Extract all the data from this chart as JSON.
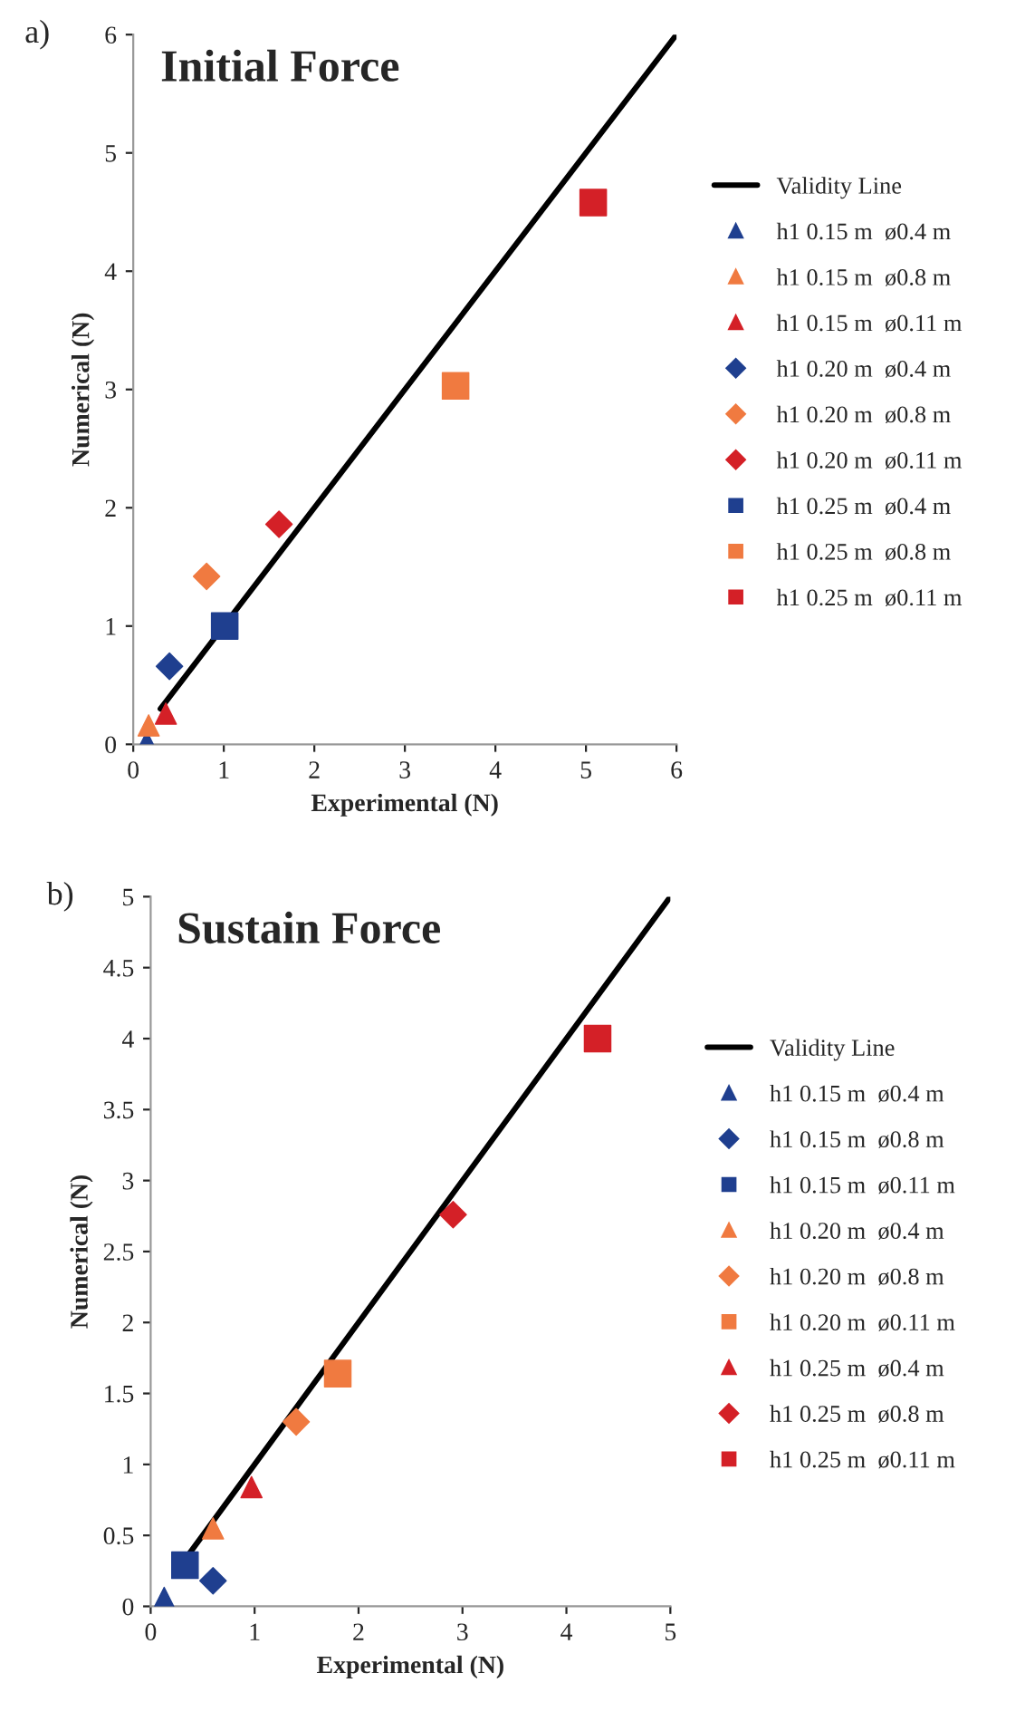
{
  "chart_data": [
    {
      "type": "scatter",
      "title": "Initial Force",
      "xlabel": "Experimental (N)",
      "ylabel": "Numerical (N)",
      "annotations": [
        "a)"
      ],
      "xlim": [
        0,
        6
      ],
      "ylim": [
        0,
        6
      ],
      "xticks": [
        0,
        1,
        2,
        3,
        4,
        5,
        6
      ],
      "yticks": [
        0,
        1,
        2,
        3,
        4,
        5,
        6
      ],
      "legend": "right",
      "grid": false,
      "series": [
        {
          "name": "Validity Line",
          "type": "line",
          "color": "#000000",
          "x": [
            0.3,
            6
          ],
          "values": [
            0.3,
            6
          ]
        },
        {
          "name": "h1 0.15 m  ø0.4 m",
          "color": "#1f3f8f",
          "marker": "triangle",
          "x": [
            0.15
          ],
          "values": [
            0.02
          ]
        },
        {
          "name": "h1 0.15 m  ø0.8 m",
          "color": "#f07a40",
          "marker": "triangle",
          "x": [
            0.17
          ],
          "values": [
            0.16
          ]
        },
        {
          "name": "h1 0.15 m  ø0.11 m",
          "color": "#d42027",
          "marker": "triangle",
          "x": [
            0.36
          ],
          "values": [
            0.26
          ]
        },
        {
          "name": "h1 0.20 m  ø0.4 m",
          "color": "#1f3f8f",
          "marker": "diamond",
          "x": [
            0.4
          ],
          "values": [
            0.66
          ]
        },
        {
          "name": "h1 0.20 m  ø0.8 m",
          "color": "#f07a40",
          "marker": "diamond",
          "x": [
            0.81
          ],
          "values": [
            1.42
          ]
        },
        {
          "name": "h1 0.20 m  ø0.11 m",
          "color": "#d42027",
          "marker": "diamond",
          "x": [
            1.61
          ],
          "values": [
            1.86
          ]
        },
        {
          "name": "h1 0.25 m  ø0.4 m",
          "color": "#1f3f8f",
          "marker": "square",
          "x": [
            1.01
          ],
          "values": [
            1.0
          ]
        },
        {
          "name": "h1 0.25 m  ø0.8 m",
          "color": "#f07a40",
          "marker": "square",
          "x": [
            3.56
          ],
          "values": [
            3.03
          ]
        },
        {
          "name": "h1 0.25 m  ø0.11 m",
          "color": "#d42027",
          "marker": "square",
          "x": [
            5.08
          ],
          "values": [
            4.58
          ]
        }
      ]
    },
    {
      "type": "scatter",
      "title": "Sustain Force",
      "xlabel": "Experimental (N)",
      "ylabel": "Numerical (N)",
      "annotations": [
        "b)"
      ],
      "xlim": [
        0,
        5
      ],
      "ylim": [
        0,
        5
      ],
      "xticks": [
        0,
        1,
        2,
        3,
        4,
        5
      ],
      "yticks": [
        0,
        0.5,
        1,
        1.5,
        2,
        2.5,
        3,
        3.5,
        4,
        4.5,
        5
      ],
      "legend": "right",
      "grid": false,
      "series": [
        {
          "name": "Validity Line",
          "type": "line",
          "color": "#000000",
          "x": [
            0.35,
            5
          ],
          "values": [
            0.35,
            5
          ]
        },
        {
          "name": "h1 0.15 m  ø0.4 m",
          "color": "#1f3f8f",
          "marker": "triangle",
          "x": [
            0.13
          ],
          "values": [
            0.06
          ]
        },
        {
          "name": "h1 0.15 m  ø0.8 m",
          "color": "#1f3f8f",
          "marker": "diamond",
          "x": [
            0.6
          ],
          "values": [
            0.18
          ]
        },
        {
          "name": "h1 0.15 m  ø0.11 m",
          "color": "#1f3f8f",
          "marker": "square",
          "x": [
            0.33
          ],
          "values": [
            0.29
          ]
        },
        {
          "name": "h1 0.20 m  ø0.4 m",
          "color": "#f07a40",
          "marker": "triangle",
          "x": [
            0.6
          ],
          "values": [
            0.55
          ]
        },
        {
          "name": "h1 0.20 m  ø0.8 m",
          "color": "#f07a40",
          "marker": "diamond",
          "x": [
            1.4
          ],
          "values": [
            1.3
          ]
        },
        {
          "name": "h1 0.20 m  ø0.11 m",
          "color": "#f07a40",
          "marker": "square",
          "x": [
            1.8
          ],
          "values": [
            1.64
          ]
        },
        {
          "name": "h1 0.25 m  ø0.4 m",
          "color": "#d42027",
          "marker": "triangle",
          "x": [
            0.97
          ],
          "values": [
            0.84
          ]
        },
        {
          "name": "h1 0.25 m  ø0.8 m",
          "color": "#d42027",
          "marker": "diamond",
          "x": [
            2.91
          ],
          "values": [
            2.76
          ]
        },
        {
          "name": "h1 0.25 m  ø0.11 m",
          "color": "#d42027",
          "marker": "square",
          "x": [
            4.3
          ],
          "values": [
            4.0
          ]
        }
      ]
    }
  ]
}
